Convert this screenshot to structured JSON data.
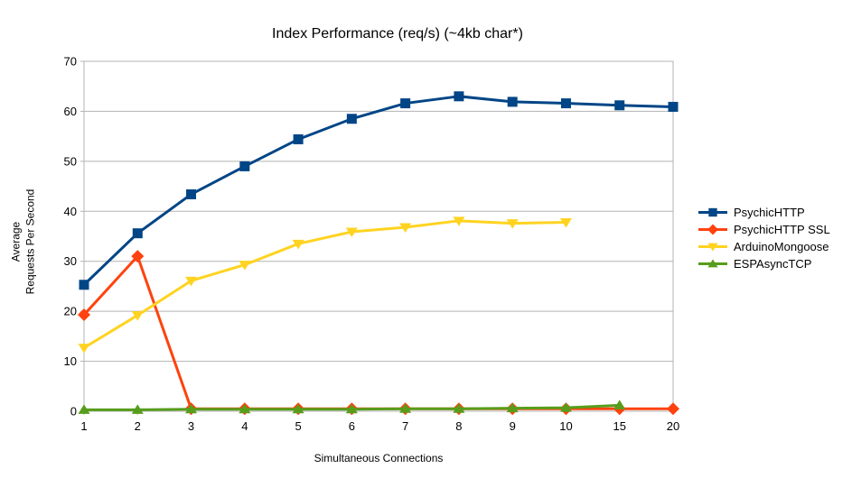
{
  "chart_data": {
    "type": "line",
    "title": "Index Performance (req/s) (~4kb char*)",
    "xlabel": "Simultaneous Connections",
    "ylabel": "Average\nRequests Per Second",
    "categories": [
      "1",
      "2",
      "3",
      "4",
      "5",
      "6",
      "7",
      "8",
      "9",
      "10",
      "15",
      "20"
    ],
    "yticks": [
      "0",
      "10",
      "20",
      "30",
      "40",
      "50",
      "60",
      "70"
    ],
    "ylim": [
      0,
      70
    ],
    "ytick_step": 10,
    "grid": "horizontal",
    "legend_position": "right",
    "axis_color": "#b3b3b3",
    "background_color": "#ffffff",
    "series": [
      {
        "name": "PsychicHTTP",
        "color": "#004586",
        "marker": "square",
        "values": [
          25.3,
          35.6,
          43.4,
          49.0,
          54.4,
          58.5,
          61.6,
          63.0,
          61.9,
          61.6,
          61.2,
          60.9
        ]
      },
      {
        "name": "PsychicHTTP SSL",
        "color": "#ff420e",
        "marker": "diamond",
        "values": [
          19.3,
          31.0,
          0.5,
          0.5,
          0.5,
          0.5,
          0.5,
          0.5,
          0.5,
          0.5,
          0.5,
          0.5
        ]
      },
      {
        "name": "ArduinoMongoose",
        "color": "#ffd320",
        "marker": "triangle-down",
        "values": [
          12.7,
          19.2,
          26.1,
          29.3,
          33.5,
          35.9,
          36.8,
          38.1,
          37.6,
          37.8,
          null,
          null
        ]
      },
      {
        "name": "ESPAsyncTCP",
        "color": "#579d1c",
        "marker": "triangle-up",
        "values": [
          0.3,
          0.3,
          0.4,
          0.4,
          0.4,
          0.4,
          0.5,
          0.5,
          0.6,
          0.7,
          1.2,
          null
        ]
      }
    ]
  }
}
